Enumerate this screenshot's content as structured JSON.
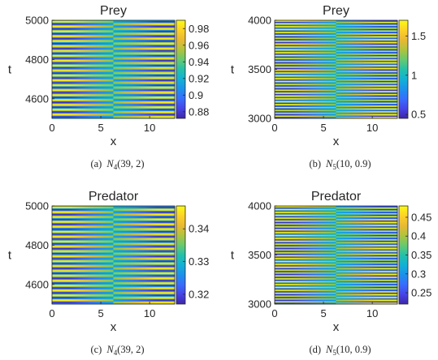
{
  "chart_data": [
    {
      "type": "heatmap",
      "title": "Prey",
      "xlabel": "x",
      "ylabel": "t",
      "caption": {
        "tag": "(a)",
        "symbol": "N",
        "sub": "4",
        "args": "(39, 2)"
      },
      "xlim": [
        0,
        12.57
      ],
      "ylim": [
        4500,
        5000
      ],
      "xticks": [
        "0",
        "5",
        "10"
      ],
      "yticks": [
        "4600",
        "4800",
        "5000"
      ],
      "clim": [
        0.872,
        0.99
      ],
      "cticks": [
        "0.88",
        "0.9",
        "0.92",
        "0.94",
        "0.96",
        "0.98"
      ],
      "pattern": {
        "stripes": 20,
        "phase_shift_x": 6.28,
        "min": 0.872,
        "max": 0.99
      }
    },
    {
      "type": "heatmap",
      "title": "Prey",
      "xlabel": "x",
      "ylabel": "t",
      "caption": {
        "tag": "(b)",
        "symbol": "N",
        "sub": "5",
        "args": "(10, 0.9)"
      },
      "xlim": [
        0,
        12.57
      ],
      "ylim": [
        3000,
        4000
      ],
      "xticks": [
        "0",
        "5",
        "10"
      ],
      "yticks": [
        "3000",
        "3500",
        "4000"
      ],
      "clim": [
        0.45,
        1.7
      ],
      "cticks": [
        "0.5",
        "1",
        "1.5"
      ],
      "pattern": {
        "stripes": 34,
        "phase_shift_x": 6.28,
        "min": 0.45,
        "max": 1.7
      }
    },
    {
      "type": "heatmap",
      "title": "Predator",
      "xlabel": "x",
      "ylabel": "t",
      "caption": {
        "tag": "(c)",
        "symbol": "N",
        "sub": "4",
        "args": "(39, 2)"
      },
      "xlim": [
        0,
        12.57
      ],
      "ylim": [
        4500,
        5000
      ],
      "xticks": [
        "0",
        "5",
        "10"
      ],
      "yticks": [
        "4600",
        "4800",
        "5000"
      ],
      "clim": [
        0.317,
        0.347
      ],
      "cticks": [
        "0.32",
        "0.33",
        "0.34"
      ],
      "pattern": {
        "stripes": 20,
        "phase_shift_x": 6.28,
        "min": 0.317,
        "max": 0.347
      }
    },
    {
      "type": "heatmap",
      "title": "Predator",
      "xlabel": "x",
      "ylabel": "t",
      "caption": {
        "tag": "(d)",
        "symbol": "N",
        "sub": "5",
        "args": "(10, 0.9)"
      },
      "xlim": [
        0,
        12.57
      ],
      "ylim": [
        3000,
        4000
      ],
      "xticks": [
        "0",
        "5",
        "10"
      ],
      "yticks": [
        "3000",
        "3500",
        "4000"
      ],
      "clim": [
        0.22,
        0.48
      ],
      "cticks": [
        "0.25",
        "0.3",
        "0.35",
        "0.4",
        "0.45"
      ],
      "pattern": {
        "stripes": 34,
        "phase_shift_x": 6.28,
        "min": 0.22,
        "max": 0.48
      }
    }
  ]
}
